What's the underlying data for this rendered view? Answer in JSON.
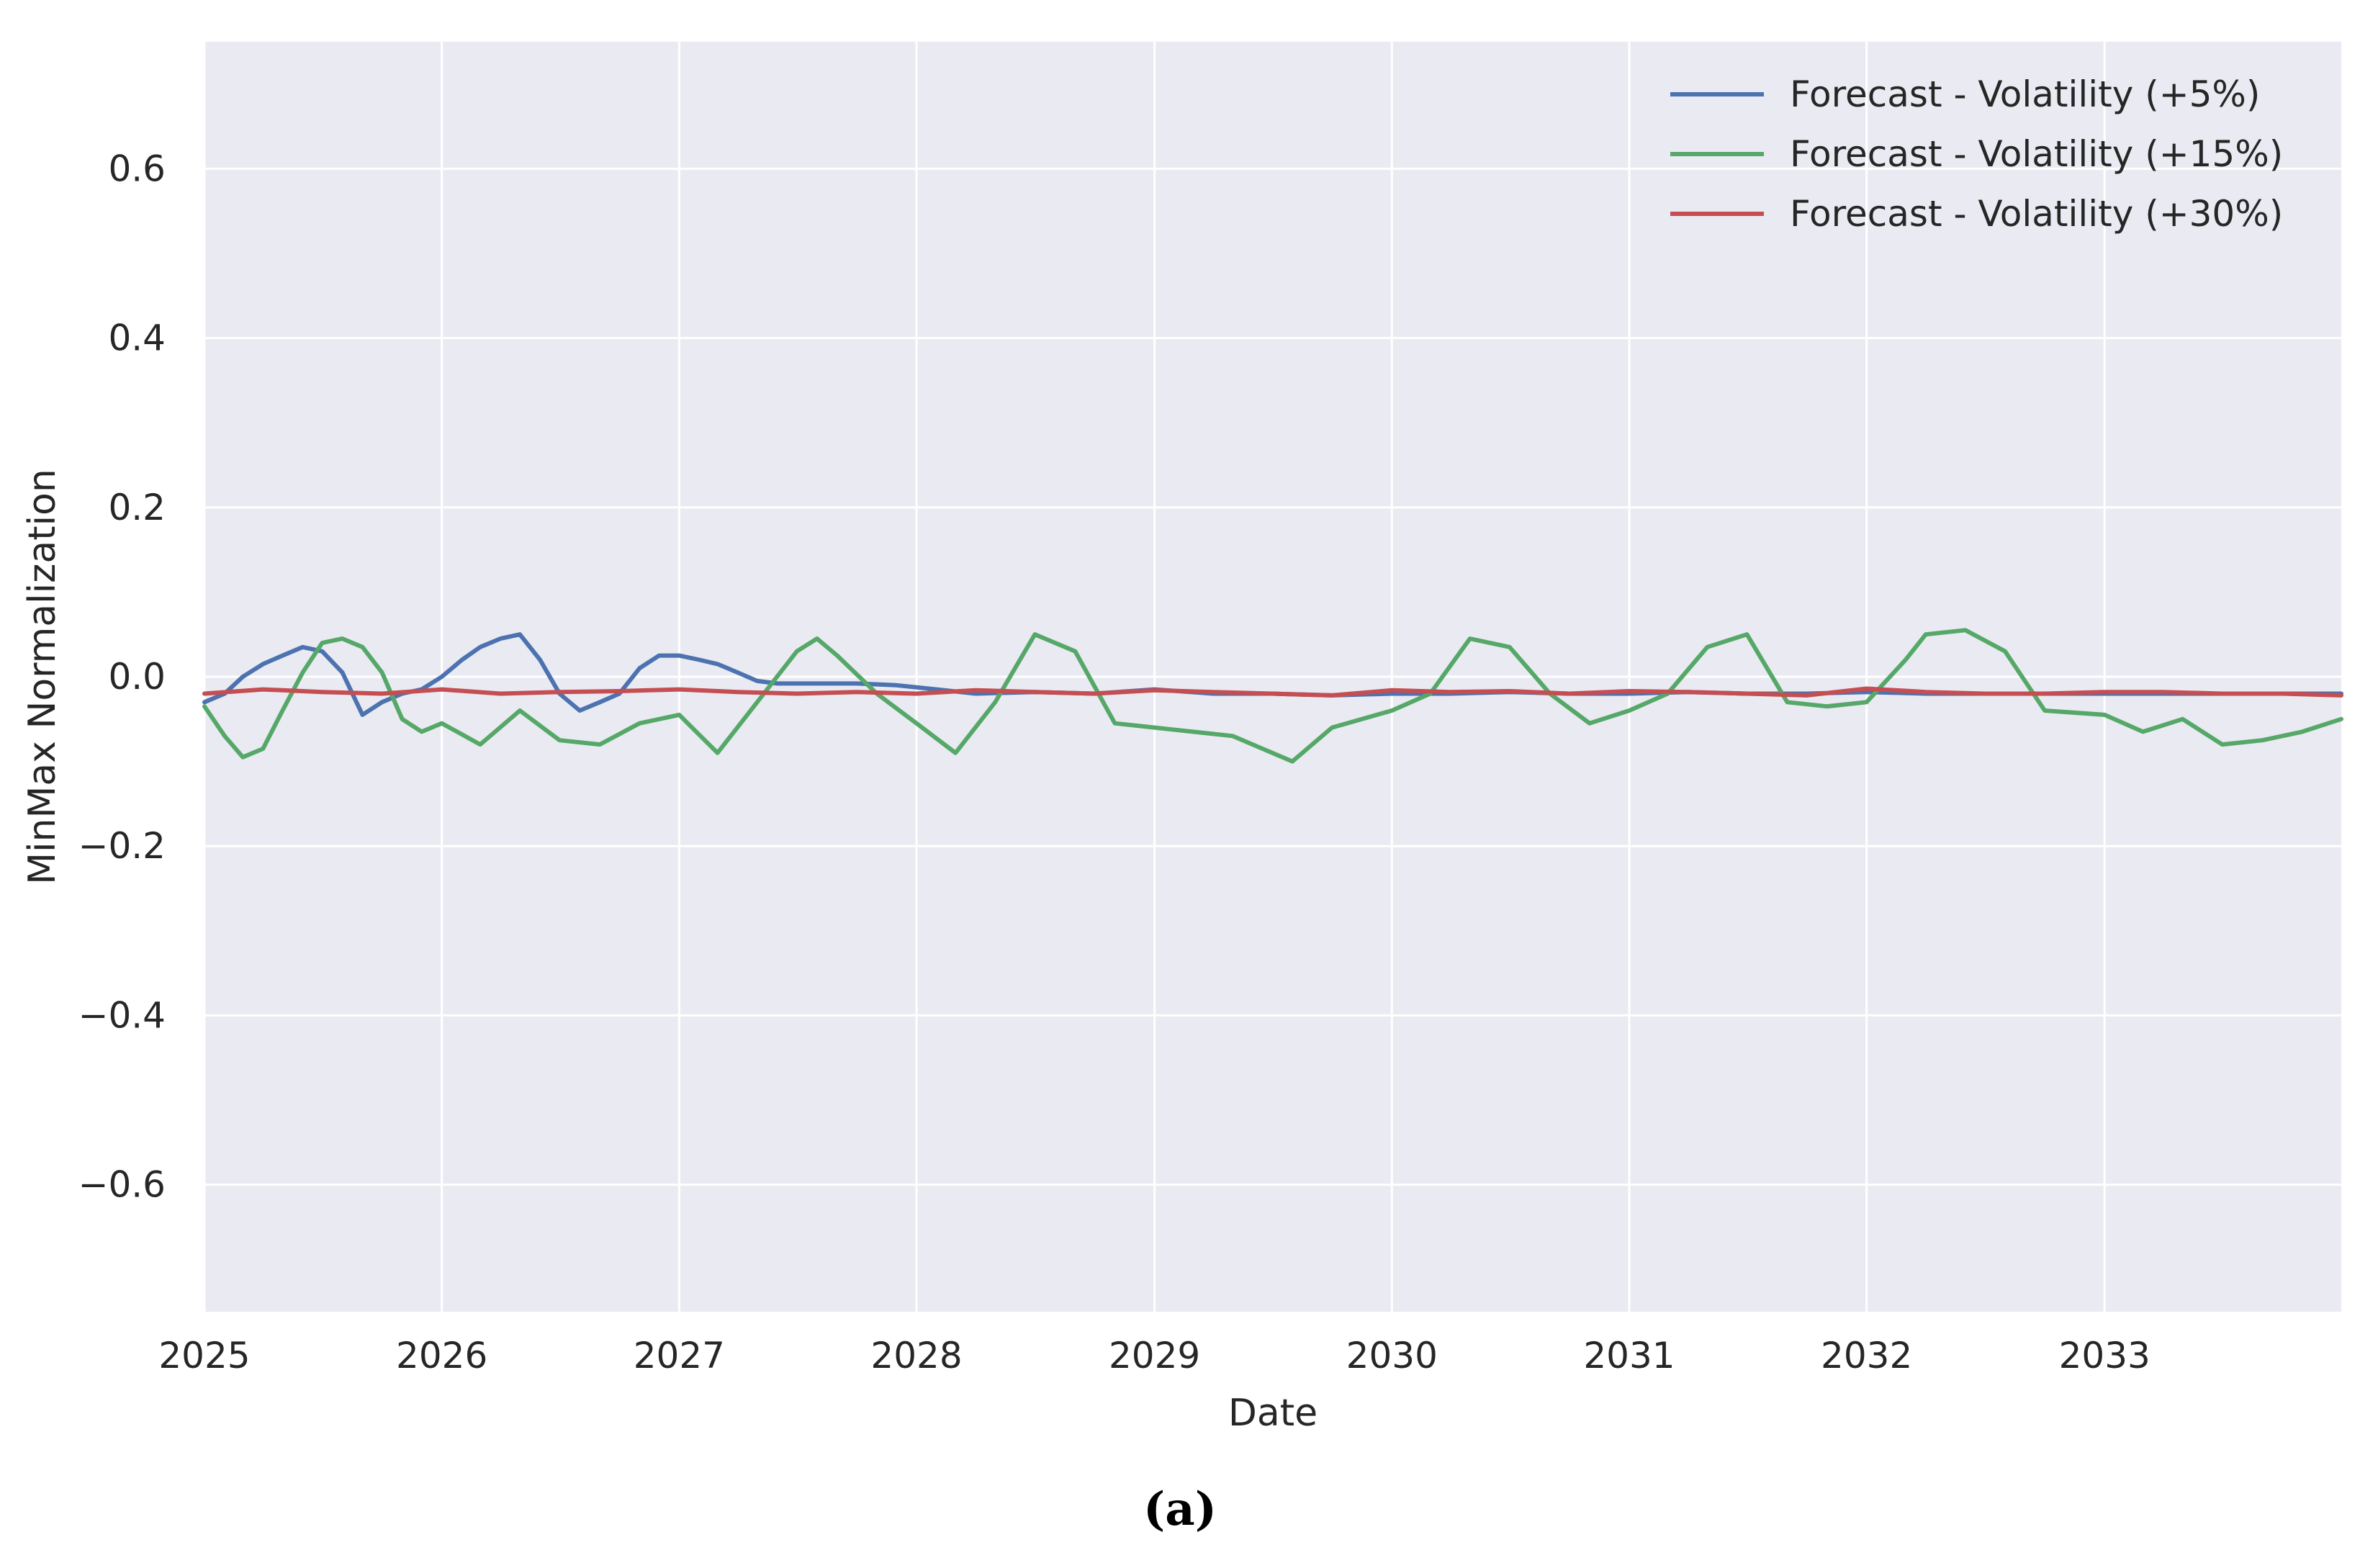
{
  "chart_data": {
    "type": "line",
    "title": "",
    "xlabel": "Date",
    "ylabel": "MinMax Normalization",
    "xlim": [
      "2025-01-01",
      "2033-12-31"
    ],
    "ylim": [
      -0.75,
      0.75
    ],
    "x_ticks": [
      "2025",
      "2026",
      "2027",
      "2028",
      "2029",
      "2030",
      "2031",
      "2032",
      "2033"
    ],
    "y_ticks": [
      0.6,
      0.4,
      0.2,
      0.0,
      -0.2,
      -0.4,
      -0.6
    ],
    "y_tick_labels": [
      "0.6",
      "0.4",
      "0.2",
      "0.0",
      "−0.2",
      "−0.4",
      "−0.6"
    ],
    "grid": true,
    "legend_position": "top-right",
    "background_color": "#eaeaf2",
    "series": [
      {
        "name": "Forecast - Volatility (+5%)",
        "color": "#4c72b0",
        "x": [
          "2025-01-01",
          "2025-02-01",
          "2025-03-01",
          "2025-04-01",
          "2025-05-01",
          "2025-06-01",
          "2025-07-01",
          "2025-08-01",
          "2025-09-01",
          "2025-10-01",
          "2025-11-01",
          "2025-12-01",
          "2026-01-01",
          "2026-02-01",
          "2026-03-01",
          "2026-04-01",
          "2026-05-01",
          "2026-06-01",
          "2026-07-01",
          "2026-08-01",
          "2026-09-01",
          "2026-10-01",
          "2026-11-01",
          "2026-12-01",
          "2027-01-01",
          "2027-02-01",
          "2027-03-01",
          "2027-04-01",
          "2027-05-01",
          "2027-06-01",
          "2027-08-01",
          "2027-10-01",
          "2027-12-01",
          "2028-02-01",
          "2028-04-01",
          "2028-07-01",
          "2028-10-01",
          "2029-01-01",
          "2029-04-01",
          "2029-07-01",
          "2029-10-01",
          "2030-01-01",
          "2030-04-01",
          "2030-07-01",
          "2030-10-01",
          "2031-01-01",
          "2031-04-01",
          "2031-07-01",
          "2031-10-01",
          "2032-01-01",
          "2032-04-01",
          "2032-07-01",
          "2032-10-01",
          "2033-01-01",
          "2033-04-01",
          "2033-07-01",
          "2033-10-01",
          "2033-12-31"
        ],
        "y": [
          -0.03,
          -0.02,
          0.0,
          0.015,
          0.025,
          0.035,
          0.03,
          0.005,
          -0.045,
          -0.03,
          -0.02,
          -0.015,
          0.0,
          0.02,
          0.035,
          0.045,
          0.05,
          0.02,
          -0.02,
          -0.04,
          -0.03,
          -0.02,
          0.01,
          0.025,
          0.025,
          0.02,
          0.015,
          0.005,
          -0.005,
          -0.008,
          -0.008,
          -0.008,
          -0.01,
          -0.015,
          -0.02,
          -0.018,
          -0.02,
          -0.015,
          -0.02,
          -0.02,
          -0.022,
          -0.02,
          -0.02,
          -0.018,
          -0.02,
          -0.02,
          -0.018,
          -0.02,
          -0.02,
          -0.018,
          -0.02,
          -0.02,
          -0.02,
          -0.02,
          -0.02,
          -0.02,
          -0.02,
          -0.02
        ]
      },
      {
        "name": "Forecast - Volatility (+15%)",
        "color": "#55a868",
        "x": [
          "2025-01-01",
          "2025-02-01",
          "2025-03-01",
          "2025-04-01",
          "2025-05-01",
          "2025-06-01",
          "2025-07-01",
          "2025-08-01",
          "2025-09-01",
          "2025-10-01",
          "2025-11-01",
          "2025-12-01",
          "2026-01-01",
          "2026-03-01",
          "2026-05-01",
          "2026-07-01",
          "2026-09-01",
          "2026-11-01",
          "2027-01-01",
          "2027-03-01",
          "2027-05-01",
          "2027-07-01",
          "2027-08-01",
          "2027-09-01",
          "2027-11-01",
          "2028-01-01",
          "2028-03-01",
          "2028-05-01",
          "2028-07-01",
          "2028-09-01",
          "2028-11-01",
          "2029-01-01",
          "2029-03-01",
          "2029-05-01",
          "2029-07-01",
          "2029-08-01",
          "2029-10-01",
          "2030-01-01",
          "2030-03-01",
          "2030-05-01",
          "2030-07-01",
          "2030-09-01",
          "2030-11-01",
          "2031-01-01",
          "2031-03-01",
          "2031-05-01",
          "2031-07-01",
          "2031-09-01",
          "2031-11-01",
          "2032-01-01",
          "2032-03-01",
          "2032-04-01",
          "2032-06-01",
          "2032-08-01",
          "2032-10-01",
          "2033-01-01",
          "2033-03-01",
          "2033-05-01",
          "2033-07-01",
          "2033-09-01",
          "2033-11-01",
          "2033-12-31"
        ],
        "y": [
          -0.035,
          -0.07,
          -0.095,
          -0.085,
          -0.04,
          0.005,
          0.04,
          0.045,
          0.035,
          0.005,
          -0.05,
          -0.065,
          -0.055,
          -0.08,
          -0.04,
          -0.075,
          -0.08,
          -0.055,
          -0.045,
          -0.09,
          -0.03,
          0.03,
          0.045,
          0.025,
          -0.02,
          -0.055,
          -0.09,
          -0.03,
          0.05,
          0.03,
          -0.055,
          -0.06,
          -0.065,
          -0.07,
          -0.09,
          -0.1,
          -0.06,
          -0.04,
          -0.02,
          0.045,
          0.035,
          -0.02,
          -0.055,
          -0.04,
          -0.02,
          0.035,
          0.05,
          -0.03,
          -0.035,
          -0.03,
          0.02,
          0.05,
          0.055,
          0.03,
          -0.04,
          -0.045,
          -0.065,
          -0.05,
          -0.08,
          -0.075,
          -0.065,
          -0.05
        ]
      },
      {
        "name": "Forecast - Volatility (+30%)",
        "color": "#c44e52",
        "x": [
          "2025-01-01",
          "2025-04-01",
          "2025-07-01",
          "2025-10-01",
          "2026-01-01",
          "2026-04-01",
          "2026-07-01",
          "2026-10-01",
          "2027-01-01",
          "2027-04-01",
          "2027-07-01",
          "2027-10-01",
          "2028-01-01",
          "2028-04-01",
          "2028-07-01",
          "2028-10-01",
          "2029-01-01",
          "2029-04-01",
          "2029-07-01",
          "2029-10-01",
          "2030-01-01",
          "2030-04-01",
          "2030-07-01",
          "2030-10-01",
          "2031-01-01",
          "2031-04-01",
          "2031-07-01",
          "2031-10-01",
          "2032-01-01",
          "2032-04-01",
          "2032-07-01",
          "2032-10-01",
          "2033-01-01",
          "2033-04-01",
          "2033-07-01",
          "2033-10-01",
          "2033-12-31"
        ],
        "y": [
          -0.02,
          -0.015,
          -0.018,
          -0.02,
          -0.015,
          -0.02,
          -0.018,
          -0.017,
          -0.015,
          -0.018,
          -0.02,
          -0.018,
          -0.02,
          -0.016,
          -0.018,
          -0.02,
          -0.016,
          -0.018,
          -0.02,
          -0.022,
          -0.016,
          -0.018,
          -0.017,
          -0.02,
          -0.017,
          -0.018,
          -0.02,
          -0.022,
          -0.014,
          -0.018,
          -0.02,
          -0.02,
          -0.018,
          -0.018,
          -0.02,
          -0.02,
          -0.022
        ]
      }
    ]
  },
  "caption": "(a)"
}
